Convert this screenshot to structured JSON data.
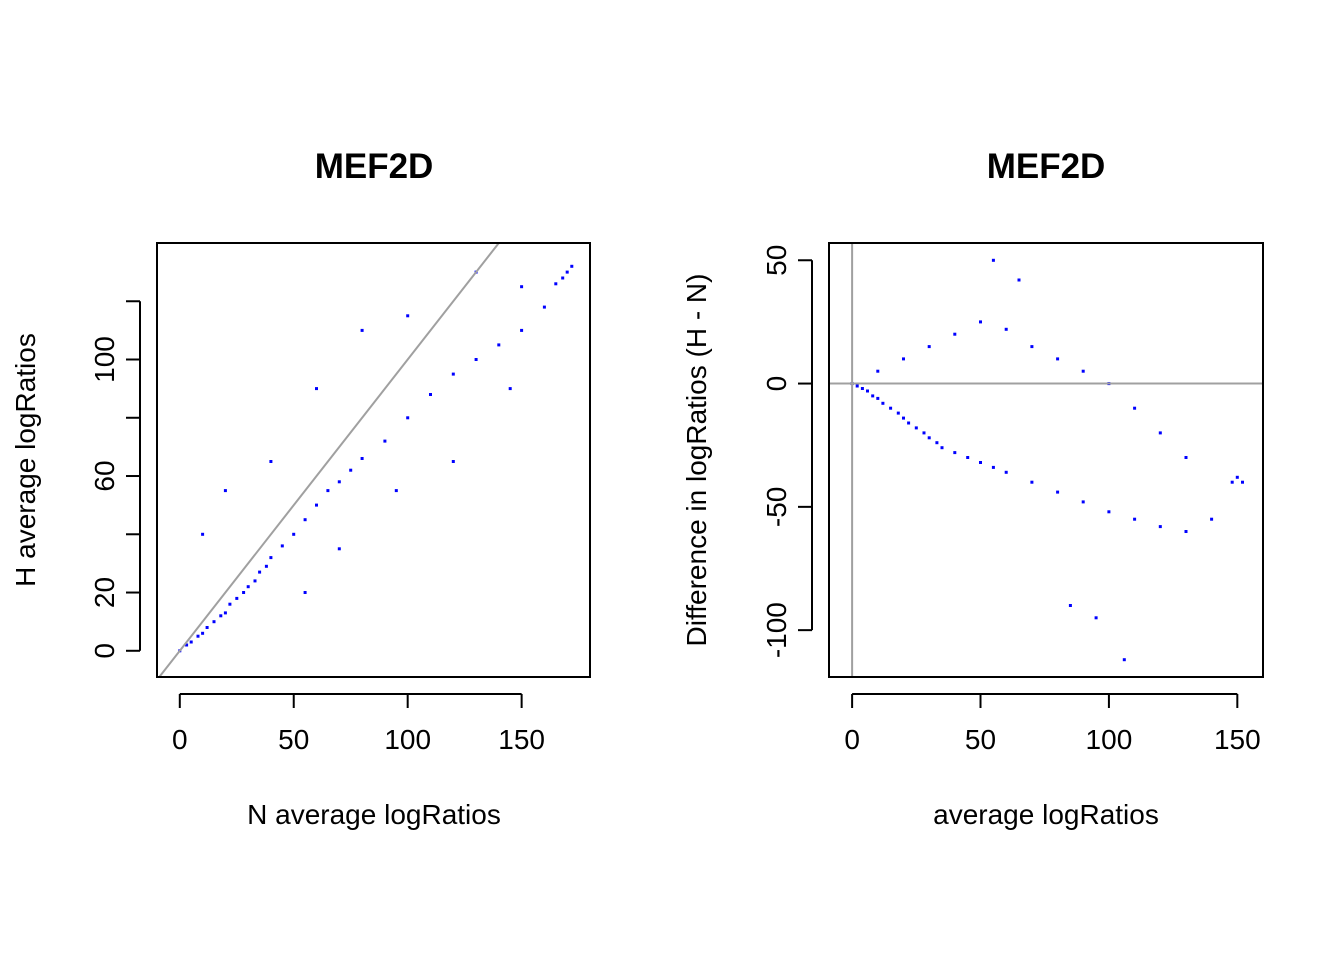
{
  "chart_data": [
    {
      "type": "scatter",
      "title": "MEF2D",
      "xlabel": "N average logRatios",
      "ylabel": "H average logRatios",
      "xlim": [
        -10,
        180
      ],
      "ylim": [
        -9,
        140
      ],
      "xticks": [
        0,
        50,
        100,
        150
      ],
      "xtick_labels": [
        "0",
        "50",
        "100",
        "150"
      ],
      "yticks": [
        0,
        20,
        40,
        60,
        80,
        100,
        120
      ],
      "ytick_labels": [
        "0",
        "20",
        "",
        "60",
        "",
        "100",
        ""
      ],
      "reference_line": {
        "kind": "abline",
        "intercept": 0,
        "slope": 1,
        "color": "#a0a0a0"
      },
      "point_color": "#0000ff",
      "points": [
        [
          0,
          0
        ],
        [
          3,
          2
        ],
        [
          5,
          3
        ],
        [
          8,
          5
        ],
        [
          10,
          6
        ],
        [
          12,
          8
        ],
        [
          15,
          10
        ],
        [
          18,
          12
        ],
        [
          20,
          13
        ],
        [
          22,
          16
        ],
        [
          25,
          18
        ],
        [
          28,
          20
        ],
        [
          30,
          22
        ],
        [
          33,
          24
        ],
        [
          35,
          27
        ],
        [
          38,
          29
        ],
        [
          40,
          32
        ],
        [
          45,
          36
        ],
        [
          50,
          40
        ],
        [
          55,
          45
        ],
        [
          60,
          50
        ],
        [
          65,
          55
        ],
        [
          70,
          58
        ],
        [
          75,
          62
        ],
        [
          80,
          66
        ],
        [
          90,
          72
        ],
        [
          100,
          80
        ],
        [
          110,
          88
        ],
        [
          120,
          95
        ],
        [
          130,
          100
        ],
        [
          140,
          105
        ],
        [
          150,
          110
        ],
        [
          160,
          118
        ],
        [
          168,
          128
        ],
        [
          170,
          130
        ],
        [
          172,
          132
        ],
        [
          165,
          126
        ],
        [
          10,
          40
        ],
        [
          20,
          55
        ],
        [
          40,
          65
        ],
        [
          60,
          90
        ],
        [
          80,
          110
        ],
        [
          100,
          115
        ],
        [
          130,
          130
        ],
        [
          55,
          20
        ],
        [
          70,
          35
        ],
        [
          95,
          55
        ],
        [
          120,
          65
        ],
        [
          145,
          90
        ],
        [
          150,
          125
        ]
      ]
    },
    {
      "type": "scatter",
      "title": "MEF2D",
      "xlabel": "average logRatios",
      "ylabel": "Difference in logRatios (H - N)",
      "xlim": [
        -9,
        160
      ],
      "ylim": [
        -119,
        57
      ],
      "xticks": [
        0,
        50,
        100,
        150
      ],
      "xtick_labels": [
        "0",
        "50",
        "100",
        "150"
      ],
      "yticks": [
        -100,
        -50,
        0,
        50
      ],
      "ytick_labels": [
        "-100",
        "-50",
        "0",
        "50"
      ],
      "reference_lines": [
        {
          "kind": "hline",
          "y": 0,
          "color": "#a0a0a0"
        },
        {
          "kind": "vline",
          "x": 0,
          "color": "#a0a0a0"
        }
      ],
      "point_color": "#0000ff",
      "points": [
        [
          0,
          0
        ],
        [
          2,
          -1
        ],
        [
          4,
          -2
        ],
        [
          6,
          -3
        ],
        [
          8,
          -5
        ],
        [
          10,
          -6
        ],
        [
          12,
          -8
        ],
        [
          15,
          -10
        ],
        [
          18,
          -12
        ],
        [
          20,
          -14
        ],
        [
          22,
          -16
        ],
        [
          25,
          -18
        ],
        [
          28,
          -20
        ],
        [
          30,
          -22
        ],
        [
          33,
          -24
        ],
        [
          35,
          -26
        ],
        [
          40,
          -28
        ],
        [
          45,
          -30
        ],
        [
          50,
          -32
        ],
        [
          55,
          -34
        ],
        [
          60,
          -36
        ],
        [
          70,
          -40
        ],
        [
          80,
          -44
        ],
        [
          90,
          -48
        ],
        [
          100,
          -52
        ],
        [
          110,
          -55
        ],
        [
          120,
          -58
        ],
        [
          130,
          -60
        ],
        [
          140,
          -55
        ],
        [
          148,
          -40
        ],
        [
          150,
          -38
        ],
        [
          152,
          -40
        ],
        [
          10,
          5
        ],
        [
          20,
          10
        ],
        [
          30,
          15
        ],
        [
          40,
          20
        ],
        [
          50,
          25
        ],
        [
          60,
          22
        ],
        [
          70,
          15
        ],
        [
          80,
          10
        ],
        [
          90,
          5
        ],
        [
          100,
          0
        ],
        [
          110,
          -10
        ],
        [
          120,
          -20
        ],
        [
          130,
          -30
        ],
        [
          55,
          50
        ],
        [
          65,
          42
        ],
        [
          85,
          -90
        ],
        [
          95,
          -95
        ],
        [
          106,
          -112
        ]
      ]
    }
  ]
}
